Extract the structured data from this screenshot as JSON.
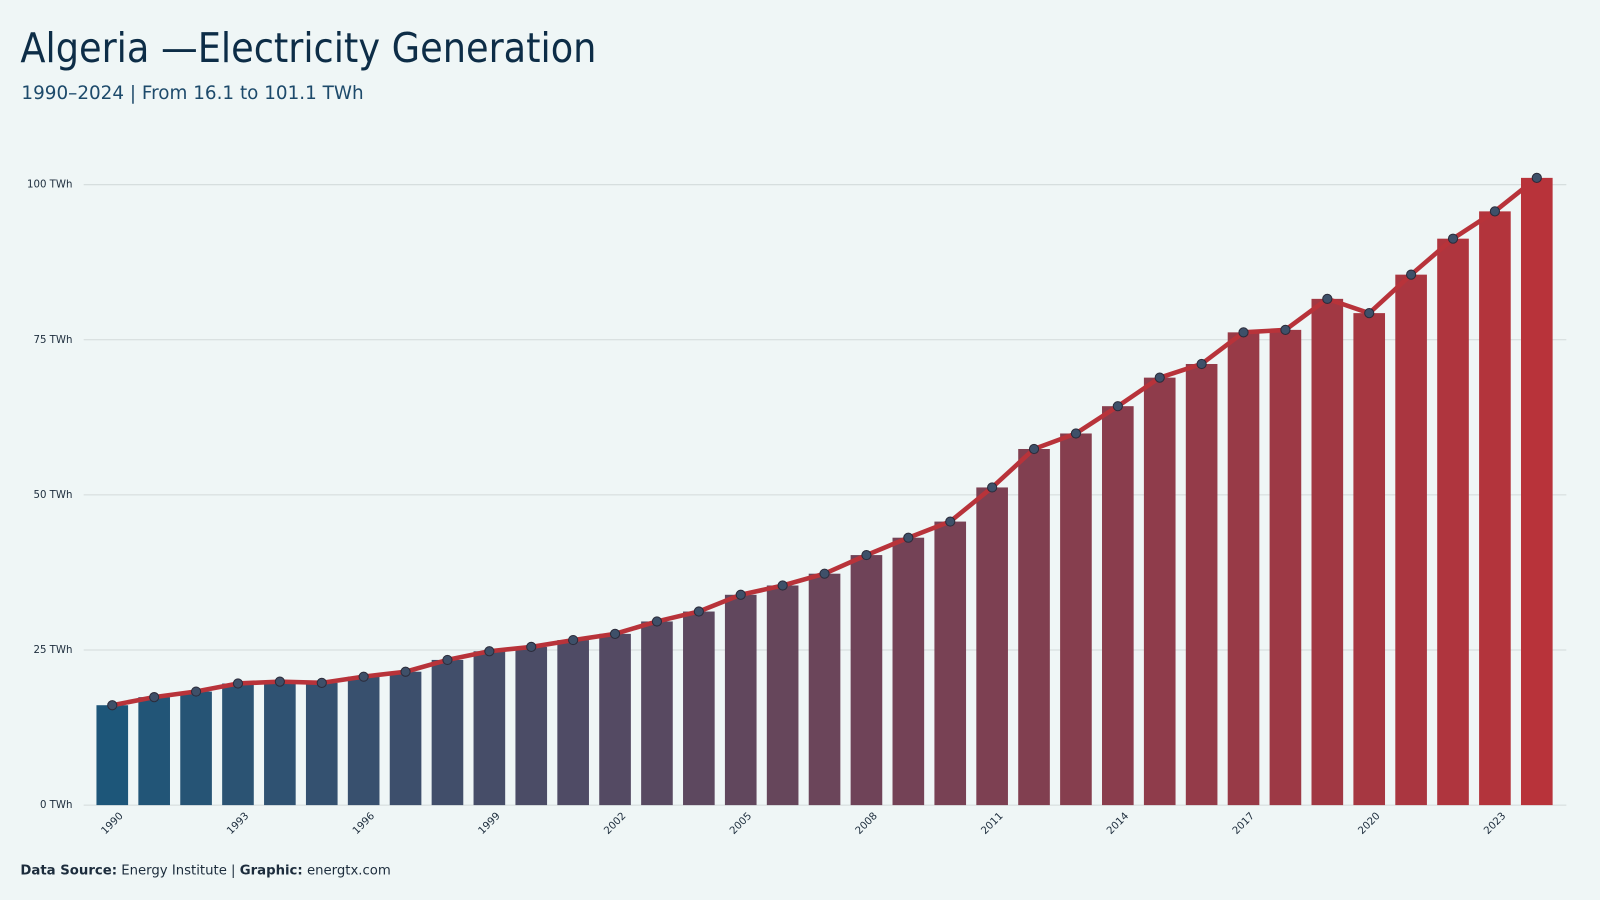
{
  "chart_data": {
    "type": "bar_line",
    "title": "Algeria —Electricity Generation",
    "subtitle": "1990–2024 | From 16.1 to 101.1 TWh",
    "categories": [
      "1990",
      null,
      null,
      "1993",
      null,
      null,
      "1996",
      null,
      null,
      "1999",
      null,
      null,
      "2002",
      null,
      null,
      "2005",
      null,
      null,
      "2008",
      null,
      null,
      "2011",
      null,
      null,
      "2014",
      null,
      null,
      "2017",
      null,
      null,
      "2020",
      null,
      null,
      "2023",
      null
    ],
    "values": [
      16.1,
      17.4,
      18.3,
      19.6,
      19.9,
      19.7,
      20.7,
      21.5,
      23.4,
      24.8,
      25.5,
      26.6,
      27.6,
      29.6,
      31.2,
      33.9,
      35.4,
      37.3,
      40.3,
      43.1,
      45.7,
      51.2,
      57.4,
      59.9,
      64.3,
      68.9,
      71.1,
      76.2,
      76.6,
      81.6,
      79.3,
      85.5,
      91.3,
      95.7,
      101.1
    ],
    "color_start": "#1d5679",
    "color_end": "#b8333a",
    "line_color": "#b8333a",
    "marker_color": "#3e5069",
    "ylim": [
      0,
      100
    ],
    "yticks": [
      {
        "value": 0,
        "label": "0 TWh"
      },
      {
        "value": 25,
        "label": "25 TWh"
      },
      {
        "value": 50,
        "label": "50 TWh"
      },
      {
        "value": 75,
        "label": "75 TWh"
      },
      {
        "value": 100,
        "label": "100 TWh"
      }
    ],
    "grid": true,
    "source": {
      "source_label": "Data Source:",
      "source_text": "Energy Institute |",
      "graphic_label": "Graphic:",
      "graphic_text": "energtx.com"
    }
  }
}
